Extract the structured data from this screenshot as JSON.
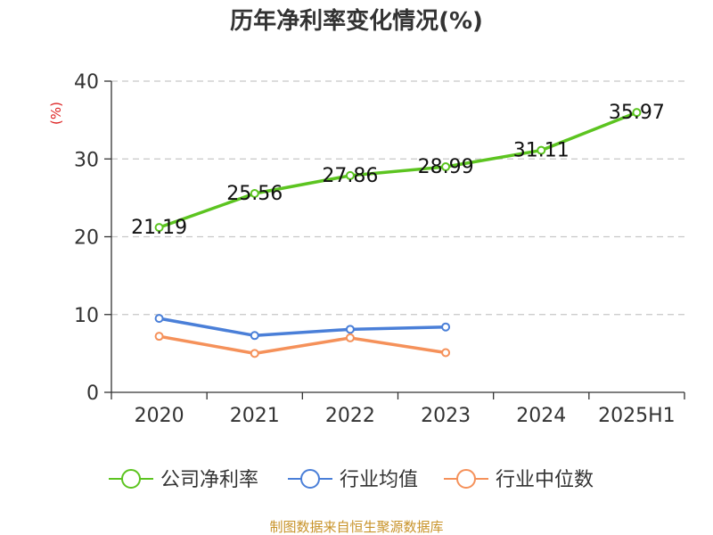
{
  "chart_data": {
    "type": "line",
    "title": "历年净利率变化情况(%)",
    "ylabel": "(%)",
    "xlabel": "",
    "categories": [
      "2020",
      "2021",
      "2022",
      "2023",
      "2024",
      "2025H1"
    ],
    "ylim": [
      0,
      40
    ],
    "yticks": [
      0,
      10,
      20,
      30,
      40
    ],
    "grid": "dashed horizontal",
    "legend_position": "bottom",
    "series": [
      {
        "name": "公司净利率",
        "color": "#5cc420",
        "labels": true,
        "values": [
          21.19,
          25.56,
          27.86,
          28.99,
          31.11,
          35.97
        ]
      },
      {
        "name": "行业均值",
        "color": "#4a7fd8",
        "labels": false,
        "values": [
          9.5,
          7.3,
          8.1,
          8.4,
          null,
          null
        ]
      },
      {
        "name": "行业中位数",
        "color": "#f5915a",
        "labels": false,
        "values": [
          7.2,
          5.0,
          7.0,
          5.1,
          null,
          null
        ]
      }
    ]
  },
  "footer": {
    "source": "制图数据来自恒生聚源数据库",
    "color": "#c8932a"
  },
  "ylabel_color": "#dd2222"
}
